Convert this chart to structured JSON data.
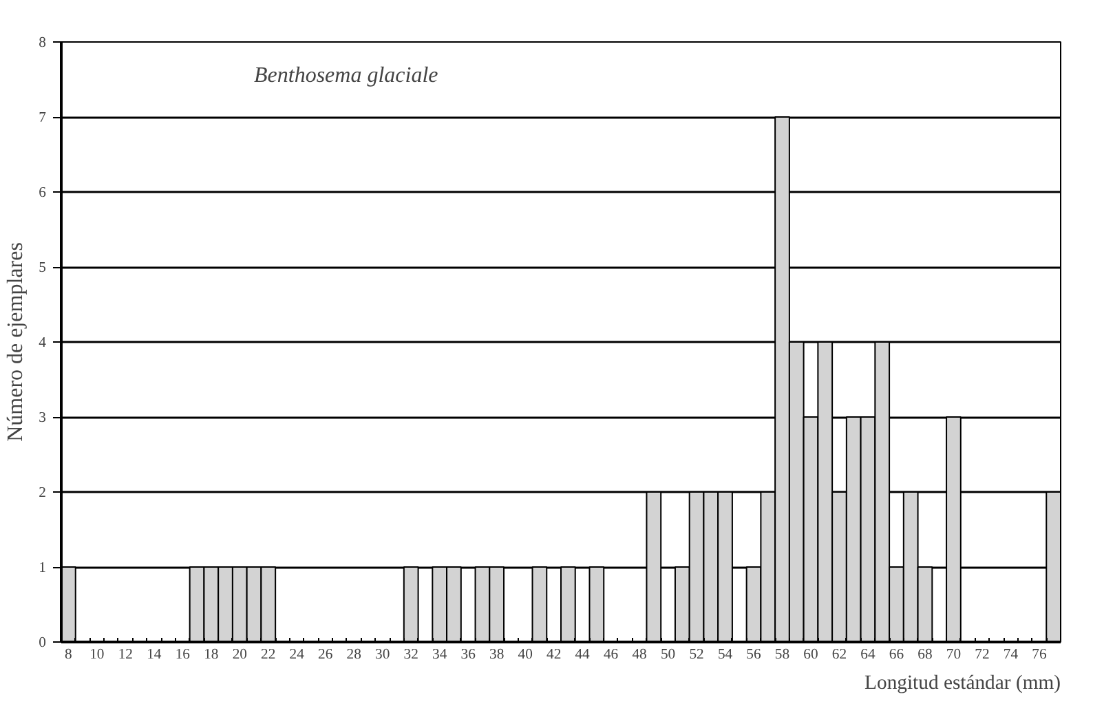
{
  "chart_data": {
    "type": "bar",
    "title": "Benthosema glaciale",
    "xlabel": "Longitud estándar (mm)",
    "ylabel": "Número de ejemplares",
    "categories": [
      "8",
      null,
      "10",
      null,
      "12",
      null,
      "14",
      null,
      "16",
      null,
      "18",
      null,
      "20",
      null,
      "22",
      null,
      "24",
      null,
      "26",
      null,
      "28",
      null,
      "30",
      null,
      "32",
      null,
      "34",
      null,
      "36",
      null,
      "38",
      null,
      "40",
      null,
      "42",
      null,
      "44",
      null,
      "46",
      null,
      "48",
      null,
      "50",
      null,
      "52",
      null,
      "54",
      null,
      "56",
      null,
      "58",
      null,
      "60",
      null,
      "62",
      null,
      "64",
      null,
      "66",
      null,
      "68",
      null,
      "70",
      null,
      "72",
      null,
      "74",
      null,
      "76",
      null
    ],
    "values": [
      1,
      0,
      0,
      0,
      0,
      0,
      0,
      0,
      0,
      1,
      1,
      1,
      1,
      1,
      1,
      0,
      0,
      0,
      0,
      0,
      0,
      0,
      0,
      0,
      1,
      0,
      1,
      1,
      0,
      1,
      1,
      0,
      0,
      1,
      0,
      1,
      0,
      1,
      0,
      0,
      0,
      2,
      0,
      1,
      2,
      2,
      2,
      0,
      1,
      2,
      7,
      4,
      3,
      4,
      2,
      3,
      3,
      4,
      1,
      2,
      1,
      0,
      3,
      0,
      0,
      0,
      0,
      0,
      0,
      2
    ],
    "color": "#d3d3d3",
    "ylim": [
      0,
      8
    ],
    "yticks": [
      0,
      1,
      2,
      3,
      4,
      5,
      6,
      7,
      8
    ],
    "grid": "y"
  }
}
